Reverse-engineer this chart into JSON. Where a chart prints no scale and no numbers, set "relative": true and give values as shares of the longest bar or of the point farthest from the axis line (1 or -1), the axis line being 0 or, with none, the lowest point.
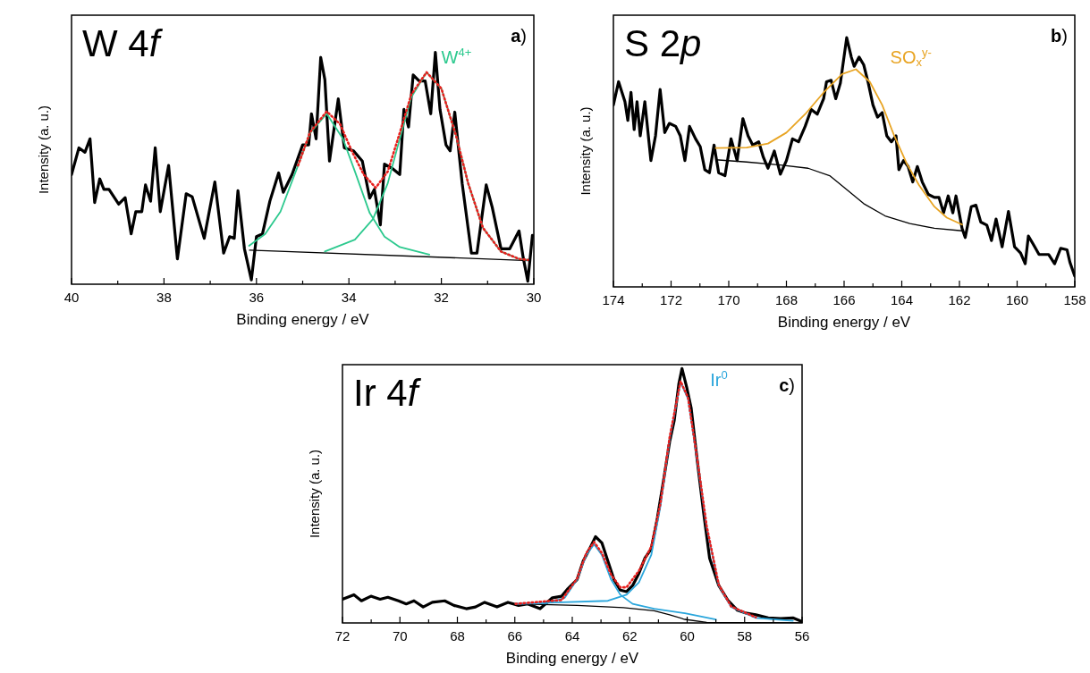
{
  "chart_data": [
    {
      "type": "line",
      "title": "W 4f",
      "xlabel": "Binding energy / eV",
      "ylabel": "Intensity (a. u.)",
      "relative": true,
      "xlim": [
        40,
        30
      ],
      "xticks": [
        40,
        {
          "value": 39,
          "label": null
        },
        38,
        {
          "value": 37,
          "label": null
        },
        36,
        {
          "value": 35,
          "label": null
        },
        34,
        {
          "value": 33,
          "label": null
        },
        32,
        {
          "value": 31,
          "label": null
        },
        30
      ],
      "annotations": [
        "a)",
        "W$^{4+}$"
      ],
      "series": [
        {
          "color": "#000000",
          "x": [
            40.0,
            39.84,
            39.71,
            39.6,
            39.5,
            39.39,
            39.3,
            39.19,
            38.98,
            38.84,
            38.71,
            38.61,
            38.48,
            38.4,
            38.29,
            38.19,
            38.08,
            37.9,
            37.71,
            37.52,
            37.39,
            37.13,
            36.9,
            36.71,
            36.58,
            36.48,
            36.4,
            36.26,
            36.11,
            36.0,
            35.87,
            35.71,
            35.52,
            35.42,
            35.23,
            35.0,
            34.87,
            34.81,
            34.71,
            34.61,
            34.52,
            34.42,
            34.23,
            34.1,
            33.9,
            33.71,
            33.55,
            33.45,
            33.32,
            33.23,
            33.06,
            32.9,
            32.81,
            32.71,
            32.61,
            32.48,
            32.35,
            32.23,
            32.13,
            32.03,
            31.9,
            31.81,
            31.71,
            31.55,
            31.35,
            31.23,
            31.03,
            30.9,
            30.71,
            30.52,
            30.32,
            30.23,
            30.13,
            30.03
          ],
          "values": [
            0.473,
            0.588,
            0.569,
            0.627,
            0.352,
            0.454,
            0.409,
            0.409,
            0.345,
            0.373,
            0.217,
            0.313,
            0.313,
            0.428,
            0.358,
            0.588,
            0.313,
            0.512,
            0.109,
            0.39,
            0.377,
            0.198,
            0.441,
            0.134,
            0.205,
            0.198,
            0.403,
            0.153,
            0.019,
            0.205,
            0.217,
            0.358,
            0.48,
            0.396,
            0.473,
            0.601,
            0.601,
            0.735,
            0.627,
            0.978,
            0.882,
            0.531,
            0.799,
            0.588,
            0.575,
            0.531,
            0.371,
            0.409,
            0.256,
            0.518,
            0.499,
            0.473,
            0.754,
            0.678,
            0.902,
            0.876,
            0.876,
            0.735,
            1.0,
            0.754,
            0.601,
            0.575,
            0.742,
            0.435,
            0.134,
            0.134,
            0.428,
            0.332,
            0.153,
            0.153,
            0.23,
            0.115,
            0.013,
            0.211
          ]
        },
        {
          "color": "#000000",
          "x": [
            36.15,
            30.1
          ],
          "values": [
            0.147,
            0.102
          ]
        },
        {
          "color": "#2cc98e",
          "x": [
            36.16,
            35.81,
            35.48,
            35.1,
            34.84,
            34.48,
            34.13,
            33.87,
            33.55,
            33.23,
            32.9,
            32.26
          ],
          "values": [
            0.166,
            0.217,
            0.313,
            0.512,
            0.652,
            0.735,
            0.627,
            0.486,
            0.307,
            0.205,
            0.16,
            0.128
          ]
        },
        {
          "color": "#2cc98e",
          "x": [
            34.52,
            33.87,
            33.48,
            33.16,
            32.9,
            32.65,
            32.32,
            32.0,
            31.68,
            31.42,
            31.1,
            30.71,
            30.32,
            30.13
          ],
          "values": [
            0.141,
            0.192,
            0.281,
            0.435,
            0.627,
            0.806,
            0.914,
            0.844,
            0.639,
            0.435,
            0.243,
            0.141,
            0.109,
            0.105
          ]
        },
        {
          "color": "#e8201e",
          "line_style": "dotted",
          "x": [
            35.1,
            34.84,
            34.48,
            34.19,
            33.94,
            33.68,
            33.42,
            33.16,
            32.9,
            32.65,
            32.32,
            32.0,
            31.68,
            31.42,
            31.1,
            30.71,
            30.32,
            30.13
          ],
          "values": [
            0.512,
            0.655,
            0.745,
            0.69,
            0.575,
            0.473,
            0.416,
            0.486,
            0.652,
            0.818,
            0.914,
            0.844,
            0.639,
            0.435,
            0.243,
            0.141,
            0.109,
            0.105
          ]
        }
      ]
    },
    {
      "type": "line",
      "title": "S 2p",
      "xlabel": "Binding energy / eV",
      "ylabel": "Intensity (a. u.)",
      "relative": true,
      "xlim": [
        174,
        158
      ],
      "xticks": [
        174,
        {
          "value": 173,
          "label": null
        },
        172,
        {
          "value": 171,
          "label": null
        },
        170,
        {
          "value": 169,
          "label": null
        },
        168,
        {
          "value": 167,
          "label": null
        },
        166,
        {
          "value": 165,
          "label": null
        },
        164,
        {
          "value": 163,
          "label": null
        },
        162,
        {
          "value": 161,
          "label": null
        },
        160,
        {
          "value": 159,
          "label": null
        },
        158
      ],
      "annotations": [
        "b)",
        "SO$_{x}$$^{y-}$"
      ],
      "series": [
        {
          "color": "#000000",
          "x": [
            174.0,
            173.82,
            173.6,
            173.5,
            173.39,
            173.28,
            173.18,
            173.07,
            172.91,
            172.7,
            172.54,
            172.38,
            172.22,
            172.06,
            171.84,
            171.68,
            171.52,
            171.36,
            171.15,
            170.99,
            170.83,
            170.67,
            170.51,
            170.35,
            170.13,
            169.92,
            169.71,
            169.51,
            169.33,
            169.17,
            168.96,
            168.8,
            168.64,
            168.42,
            168.21,
            168.0,
            167.79,
            167.58,
            167.35,
            167.14,
            166.93,
            166.71,
            166.61,
            166.45,
            166.29,
            166.13,
            165.91,
            165.75,
            165.65,
            165.48,
            165.32,
            165.16,
            165.0,
            164.84,
            164.68,
            164.52,
            164.36,
            164.2,
            164.1,
            163.94,
            163.78,
            163.62,
            163.46,
            163.29,
            163.08,
            162.87,
            162.71,
            162.55,
            162.39,
            162.23,
            162.12,
            162.01,
            161.91,
            161.8,
            161.59,
            161.43,
            161.26,
            161.05,
            160.89,
            160.73,
            160.52,
            160.3,
            160.09,
            159.88,
            159.72,
            159.61,
            159.45,
            159.24,
            158.91,
            158.7,
            158.49,
            158.27,
            158.17,
            158.0
          ],
          "values": [
            0.73,
            0.823,
            0.743,
            0.668,
            0.78,
            0.631,
            0.743,
            0.606,
            0.743,
            0.507,
            0.606,
            0.792,
            0.619,
            0.656,
            0.644,
            0.606,
            0.507,
            0.644,
            0.594,
            0.563,
            0.47,
            0.458,
            0.569,
            0.458,
            0.446,
            0.594,
            0.507,
            0.675,
            0.606,
            0.569,
            0.582,
            0.52,
            0.476,
            0.545,
            0.452,
            0.507,
            0.594,
            0.582,
            0.644,
            0.712,
            0.693,
            0.755,
            0.823,
            0.829,
            0.755,
            0.817,
            1.0,
            0.922,
            0.885,
            0.922,
            0.891,
            0.817,
            0.73,
            0.681,
            0.699,
            0.606,
            0.582,
            0.606,
            0.47,
            0.507,
            0.483,
            0.421,
            0.483,
            0.421,
            0.371,
            0.359,
            0.359,
            0.297,
            0.365,
            0.297,
            0.365,
            0.297,
            0.235,
            0.198,
            0.322,
            0.328,
            0.26,
            0.248,
            0.186,
            0.272,
            0.161,
            0.303,
            0.161,
            0.136,
            0.093,
            0.204,
            0.173,
            0.13,
            0.13,
            0.093,
            0.155,
            0.149,
            0.099,
            0.043
          ]
        },
        {
          "color": "#000000",
          "x": [
            170.45,
            169.38,
            168.21,
            167.25,
            166.5,
            165.97,
            165.32,
            164.58,
            163.72,
            162.87,
            161.91
          ],
          "values": [
            0.51,
            0.501,
            0.489,
            0.476,
            0.446,
            0.396,
            0.334,
            0.285,
            0.254,
            0.235,
            0.225
          ]
        },
        {
          "color": "#e8a423",
          "x": [
            170.45,
            169.38,
            168.64,
            168.0,
            167.35,
            166.71,
            166.07,
            165.59,
            165.11,
            164.68,
            164.26,
            163.83,
            163.4,
            162.87,
            162.44,
            161.91
          ],
          "values": [
            0.557,
            0.559,
            0.575,
            0.619,
            0.693,
            0.78,
            0.854,
            0.873,
            0.823,
            0.73,
            0.606,
            0.495,
            0.408,
            0.322,
            0.278,
            0.25
          ]
        }
      ]
    },
    {
      "type": "line",
      "title": "Ir 4f",
      "xlabel": "Binding energy / eV",
      "ylabel": "Intensity (a. u.)",
      "relative": true,
      "xlim": [
        72,
        56
      ],
      "xticks": [
        72,
        {
          "value": 71,
          "label": null
        },
        70,
        {
          "value": 69,
          "label": null
        },
        68,
        {
          "value": 67,
          "label": null
        },
        66,
        {
          "value": 65,
          "label": null
        },
        64,
        {
          "value": 63,
          "label": null
        },
        62,
        {
          "value": 61,
          "label": null
        },
        60,
        {
          "value": 59,
          "label": null
        },
        58,
        {
          "value": 57,
          "label": null
        },
        56
      ],
      "annotations": [
        "c)",
        "Ir$^{0}$"
      ],
      "series": [
        {
          "color": "#000000",
          "x": [
            72.0,
            71.6,
            71.34,
            71.01,
            70.69,
            70.42,
            70.05,
            69.78,
            69.51,
            69.19,
            68.87,
            68.44,
            68.12,
            67.69,
            67.37,
            67.05,
            66.62,
            66.24,
            65.87,
            65.55,
            65.12,
            64.69,
            64.37,
            64.15,
            63.83,
            63.62,
            63.4,
            63.19,
            62.97,
            62.76,
            62.55,
            62.33,
            62.11,
            61.9,
            61.68,
            61.47,
            61.25,
            61.04,
            60.83,
            60.61,
            60.45,
            60.29,
            60.18,
            60.02,
            59.86,
            59.65,
            59.43,
            59.22,
            58.9,
            58.57,
            58.25,
            57.93,
            57.61,
            57.18,
            56.75,
            56.32,
            56.0
          ],
          "values": [
            0.093,
            0.111,
            0.087,
            0.105,
            0.093,
            0.101,
            0.087,
            0.075,
            0.087,
            0.063,
            0.081,
            0.087,
            0.069,
            0.056,
            0.063,
            0.081,
            0.063,
            0.081,
            0.069,
            0.075,
            0.056,
            0.099,
            0.105,
            0.135,
            0.171,
            0.243,
            0.291,
            0.339,
            0.315,
            0.243,
            0.171,
            0.129,
            0.123,
            0.147,
            0.195,
            0.255,
            0.291,
            0.411,
            0.555,
            0.712,
            0.796,
            0.94,
            1.0,
            0.928,
            0.844,
            0.639,
            0.435,
            0.255,
            0.147,
            0.087,
            0.05,
            0.038,
            0.032,
            0.02,
            0.017,
            0.02,
            0.005
          ]
        },
        {
          "color": "#000000",
          "x": [
            65.97,
            63.83,
            62.22,
            61.15,
            60.61,
            60.08,
            59.32,
            56.0
          ],
          "values": [
            0.075,
            0.069,
            0.06,
            0.048,
            0.032,
            0.014,
            0.002,
            0.0
          ]
        },
        {
          "color": "#2aa6dc",
          "x": [
            65.97,
            64.9,
            64.26,
            63.83,
            63.51,
            63.24,
            62.97,
            62.65,
            62.33,
            61.9,
            61.15,
            60.08,
            59.0
          ],
          "values": [
            0.075,
            0.078,
            0.099,
            0.171,
            0.267,
            0.309,
            0.267,
            0.171,
            0.111,
            0.075,
            0.056,
            0.038,
            0.014
          ]
        },
        {
          "color": "#2aa6dc",
          "x": [
            65.97,
            64.37,
            62.76,
            62.11,
            61.68,
            61.25,
            60.93,
            60.61,
            60.23,
            59.97,
            59.65,
            59.32,
            58.9,
            58.47,
            57.61,
            56.32
          ],
          "values": [
            0.075,
            0.081,
            0.087,
            0.111,
            0.159,
            0.267,
            0.459,
            0.724,
            0.946,
            0.88,
            0.639,
            0.375,
            0.147,
            0.063,
            0.02,
            0.008
          ]
        },
        {
          "color": "#e8201e",
          "line_style": "dotted",
          "x": [
            65.97,
            64.37,
            63.83,
            63.51,
            63.24,
            62.97,
            62.65,
            62.33,
            62.11,
            61.68,
            61.25,
            60.93,
            60.61,
            60.23,
            59.97,
            59.65,
            59.32,
            58.9,
            58.47,
            57.61
          ],
          "values": [
            0.075,
            0.09,
            0.175,
            0.275,
            0.318,
            0.275,
            0.19,
            0.14,
            0.14,
            0.205,
            0.3,
            0.47,
            0.73,
            0.95,
            0.885,
            0.645,
            0.38,
            0.15,
            0.065,
            0.022
          ]
        }
      ]
    }
  ]
}
